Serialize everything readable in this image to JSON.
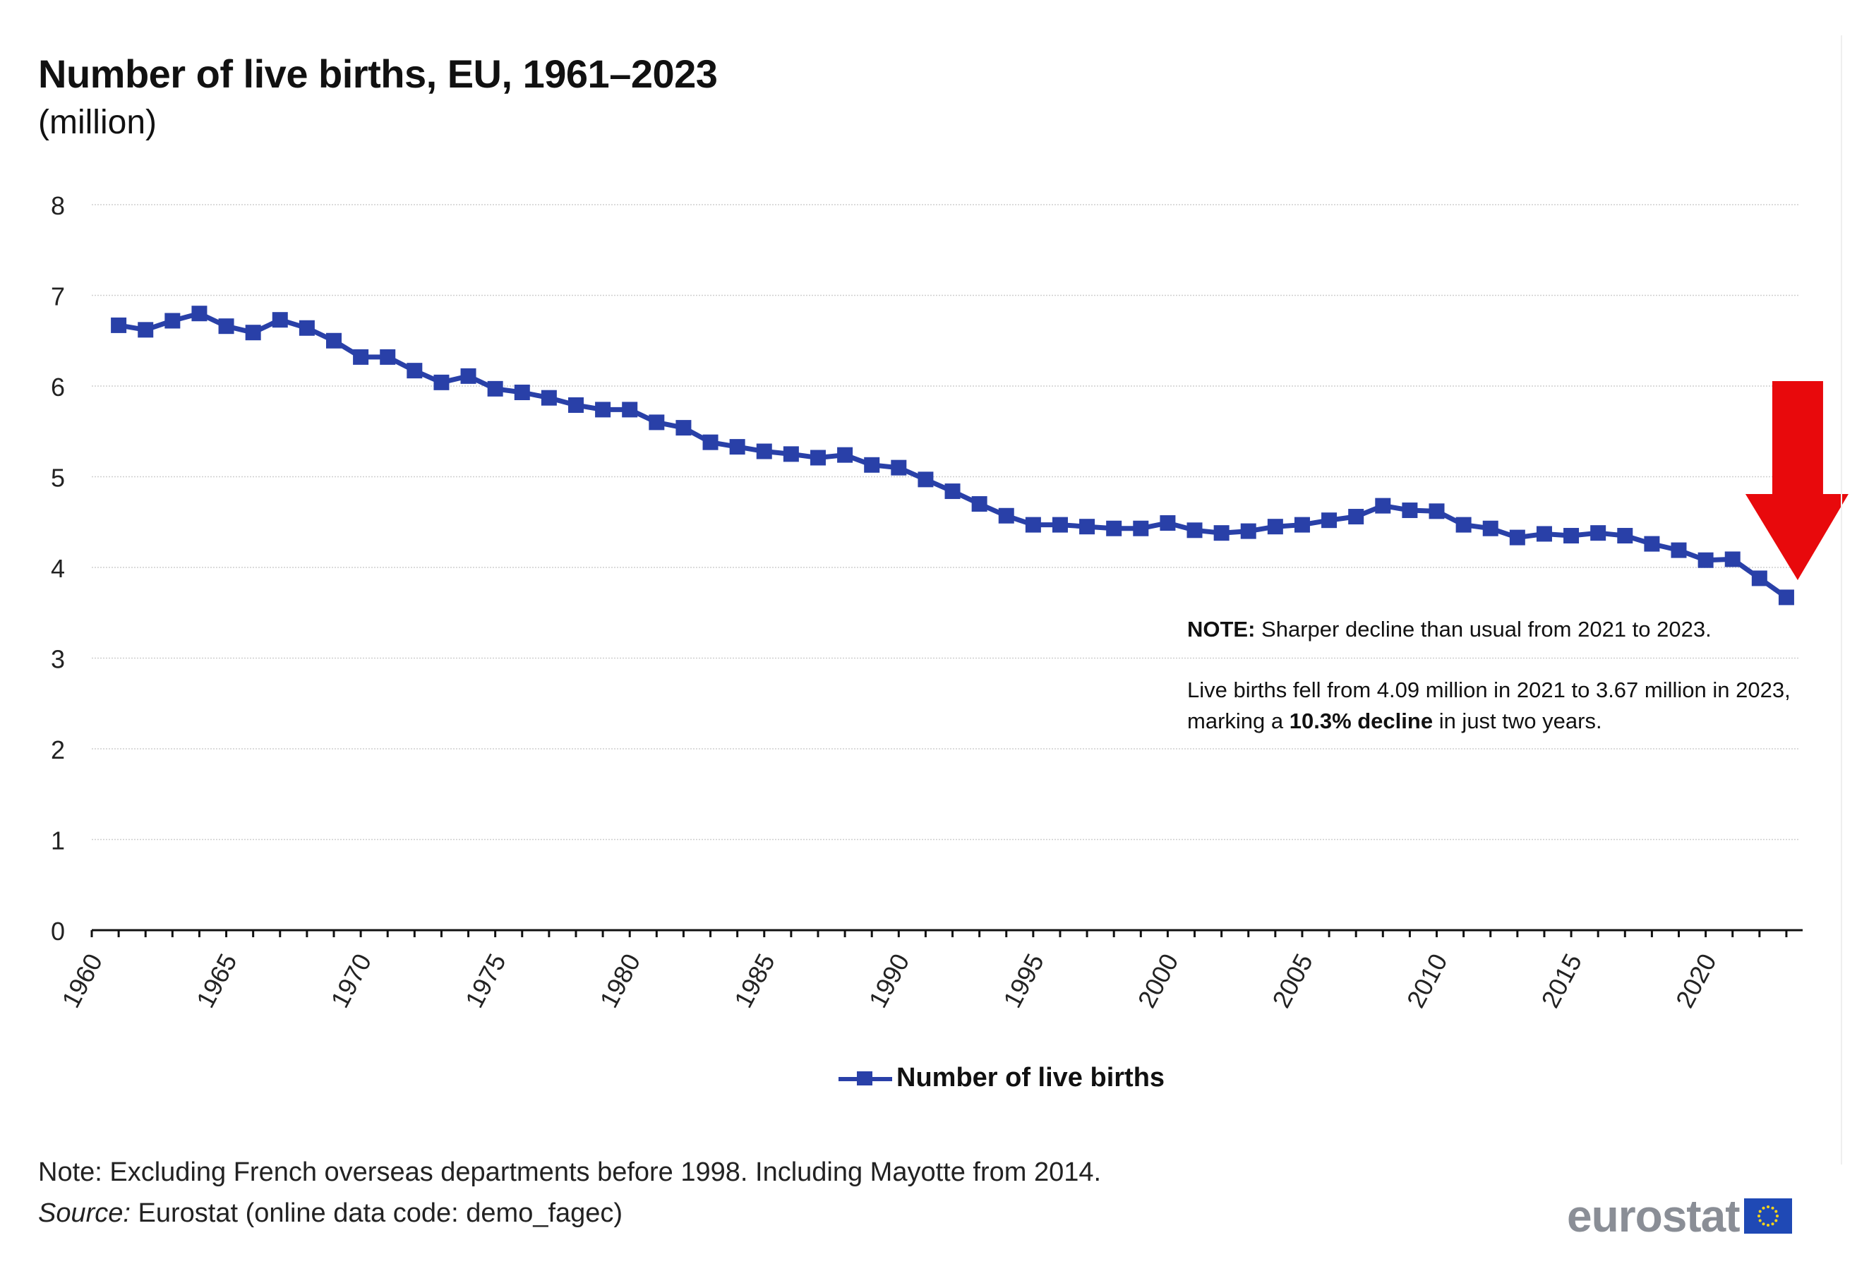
{
  "title": "Number of live births, EU, 1961–2023",
  "subtitle": "(million)",
  "legend": {
    "label": "Number of live births"
  },
  "annotation": {
    "note_label": "NOTE:",
    "note_text": " Sharper decline than usual from 2021 to 2023.",
    "line2_pre": "Live births fell from 4.09 million in 2021 to 3.67 million in 2023, marking a ",
    "line2_bold": "10.3% decline",
    "line2_post": " in just two years."
  },
  "footer": {
    "note": "Note: Excluding French overseas  departments before 1998.  Including Mayotte  from 2014.",
    "source_label": "Source:",
    "source_text": " Eurostat (online data code: demo_fagec)"
  },
  "logo": {
    "text": "eurostat"
  },
  "colors": {
    "series": "#2940a8",
    "arrow": "#e8090c",
    "grid": "#cfcfcf"
  },
  "chart_data": {
    "type": "line",
    "title": "Number of live births, EU, 1961–2023",
    "subtitle": "(million)",
    "ylim": [
      0,
      8
    ],
    "y_ticks": [
      0,
      1,
      2,
      3,
      4,
      5,
      6,
      7,
      8
    ],
    "x_tick_labels": [
      "1960",
      "1965",
      "1970",
      "1975",
      "1980",
      "1985",
      "1990",
      "1995",
      "2000",
      "2005",
      "2010",
      "2015",
      "2020"
    ],
    "x": [
      1961,
      1962,
      1963,
      1964,
      1965,
      1966,
      1967,
      1968,
      1969,
      1970,
      1971,
      1972,
      1973,
      1974,
      1975,
      1976,
      1977,
      1978,
      1979,
      1980,
      1981,
      1982,
      1983,
      1984,
      1985,
      1986,
      1987,
      1988,
      1989,
      1990,
      1991,
      1992,
      1993,
      1994,
      1995,
      1996,
      1997,
      1998,
      1999,
      2000,
      2001,
      2002,
      2003,
      2004,
      2005,
      2006,
      2007,
      2008,
      2009,
      2010,
      2011,
      2012,
      2013,
      2014,
      2015,
      2016,
      2017,
      2018,
      2019,
      2020,
      2021,
      2022,
      2023
    ],
    "series": [
      {
        "name": "Number of live births",
        "values": [
          6.67,
          6.62,
          6.72,
          6.8,
          6.66,
          6.59,
          6.73,
          6.64,
          6.5,
          6.32,
          6.32,
          6.17,
          6.04,
          6.11,
          5.97,
          5.93,
          5.87,
          5.79,
          5.74,
          5.74,
          5.6,
          5.54,
          5.38,
          5.33,
          5.28,
          5.25,
          5.21,
          5.24,
          5.13,
          5.1,
          4.97,
          4.84,
          4.7,
          4.57,
          4.47,
          4.47,
          4.45,
          4.43,
          4.43,
          4.49,
          4.41,
          4.38,
          4.4,
          4.45,
          4.47,
          4.52,
          4.56,
          4.68,
          4.63,
          4.62,
          4.47,
          4.43,
          4.33,
          4.37,
          4.35,
          4.38,
          4.35,
          4.26,
          4.19,
          4.08,
          4.09,
          3.88,
          3.67
        ]
      }
    ],
    "grid": true,
    "legend_position": "bottom"
  }
}
